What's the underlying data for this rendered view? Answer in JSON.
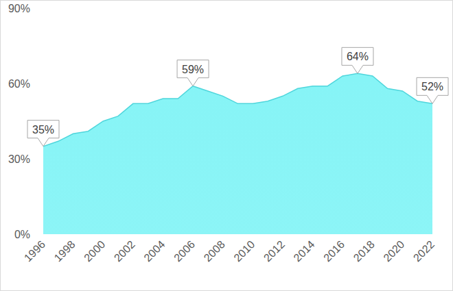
{
  "chart_data": {
    "type": "area",
    "x": [
      1996,
      1997,
      1998,
      1999,
      2000,
      2001,
      2002,
      2003,
      2004,
      2005,
      2006,
      2007,
      2008,
      2009,
      2010,
      2011,
      2012,
      2013,
      2014,
      2015,
      2016,
      2017,
      2018,
      2019,
      2020,
      2021,
      2022
    ],
    "values": [
      35,
      37,
      40,
      41,
      45,
      47,
      52,
      52,
      54,
      54,
      59,
      57,
      55,
      52,
      52,
      53,
      55,
      58,
      59,
      59,
      63,
      64,
      63,
      58,
      57,
      53,
      52
    ],
    "color": "#86f4f6",
    "xlim": [
      1996,
      2022
    ],
    "xticks": [
      1996,
      1998,
      2000,
      2002,
      2004,
      2006,
      2008,
      2010,
      2012,
      2014,
      2016,
      2018,
      2020,
      2022
    ],
    "ylim": [
      0,
      90
    ],
    "yticks": [
      {
        "value": 0,
        "label": "0%"
      },
      {
        "value": 30,
        "label": "30%"
      },
      {
        "value": 60,
        "label": "60%"
      },
      {
        "value": 90,
        "label": "90%"
      }
    ],
    "grid": false,
    "annotations": [
      {
        "x": 1996,
        "y": 35,
        "text": "35%"
      },
      {
        "x": 2006,
        "y": 59,
        "text": "59%"
      },
      {
        "x": 2017,
        "y": 64,
        "text": "64%"
      },
      {
        "x": 2022,
        "y": 52,
        "text": "52%"
      }
    ]
  }
}
